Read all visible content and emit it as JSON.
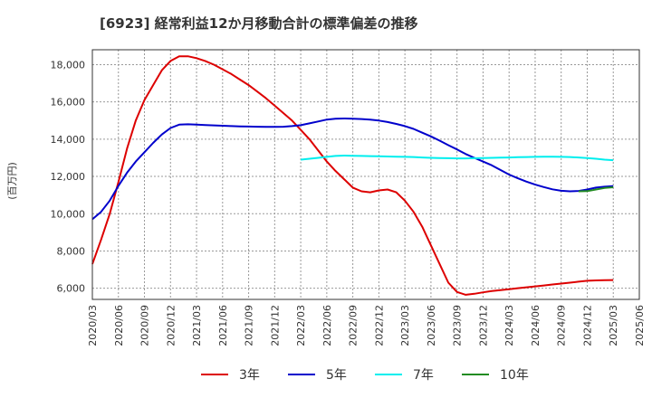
{
  "chart_data": {
    "type": "line",
    "title": "[6923]  経常利益12か月移動合計の標準偏差の推移",
    "ylabel": "(百万円)",
    "xlabel": "",
    "ylim": [
      5400,
      18800
    ],
    "yticks": [
      6000,
      8000,
      10000,
      12000,
      14000,
      16000,
      18000
    ],
    "ytick_labels": [
      "6,000",
      "8,000",
      "10,000",
      "12,000",
      "14,000",
      "16,000",
      "18,000"
    ],
    "xlim": [
      "2020-03",
      "2025-06"
    ],
    "xticks": [
      "2020/03",
      "2020/06",
      "2020/09",
      "2020/12",
      "2021/03",
      "2021/06",
      "2021/09",
      "2021/12",
      "2022/03",
      "2022/06",
      "2022/09",
      "2022/12",
      "2023/03",
      "2023/06",
      "2023/09",
      "2023/12",
      "2024/03",
      "2024/06",
      "2024/09",
      "2024/12",
      "2025/03",
      "2025/06"
    ],
    "grid": true,
    "legend_position": "bottom",
    "series": [
      {
        "name": "3年",
        "color": "#dd0000",
        "x": [
          "2020-03",
          "2020-04",
          "2020-05",
          "2020-06",
          "2020-07",
          "2020-08",
          "2020-09",
          "2020-10",
          "2020-11",
          "2020-12",
          "2021-01",
          "2021-02",
          "2021-03",
          "2021-04",
          "2021-05",
          "2021-06",
          "2021-07",
          "2021-08",
          "2021-09",
          "2021-10",
          "2021-11",
          "2021-12",
          "2022-01",
          "2022-02",
          "2022-03",
          "2022-04",
          "2022-05",
          "2022-06",
          "2022-07",
          "2022-08",
          "2022-09",
          "2022-10",
          "2022-11",
          "2022-12",
          "2023-01",
          "2023-02",
          "2023-03",
          "2023-04",
          "2023-05",
          "2023-06",
          "2023-07",
          "2023-08",
          "2023-09",
          "2023-10",
          "2023-11",
          "2023-12",
          "2024-01",
          "2024-02",
          "2024-03",
          "2024-04",
          "2024-05",
          "2024-06",
          "2024-07",
          "2024-08",
          "2024-09",
          "2024-10",
          "2024-11",
          "2024-12",
          "2025-01",
          "2025-02",
          "2025-03"
        ],
        "values": [
          7300,
          8600,
          10000,
          11700,
          13500,
          15000,
          16100,
          16900,
          17700,
          18200,
          18450,
          18450,
          18350,
          18200,
          18000,
          17750,
          17500,
          17200,
          16900,
          16550,
          16200,
          15800,
          15400,
          15000,
          14500,
          14000,
          13400,
          12800,
          12300,
          11850,
          11400,
          11200,
          11150,
          11250,
          11300,
          11150,
          10700,
          10100,
          9300,
          8300,
          7300,
          6300,
          5800,
          5650,
          5700,
          5780,
          5850,
          5900,
          5950,
          6000,
          6050,
          6100,
          6150,
          6200,
          6250,
          6300,
          6350,
          6400,
          6420,
          6430,
          6440
        ],
        "start": "2020-03"
      },
      {
        "name": "5年",
        "color": "#0000cc",
        "x": [
          "2020-03",
          "2020-04",
          "2020-05",
          "2020-06",
          "2020-07",
          "2020-08",
          "2020-09",
          "2020-10",
          "2020-11",
          "2020-12",
          "2021-01",
          "2021-02",
          "2021-03",
          "2021-04",
          "2021-05",
          "2021-06",
          "2021-07",
          "2021-08",
          "2021-09",
          "2021-10",
          "2021-11",
          "2021-12",
          "2022-01",
          "2022-02",
          "2022-03",
          "2022-04",
          "2022-05",
          "2022-06",
          "2022-07",
          "2022-08",
          "2022-09",
          "2022-10",
          "2022-11",
          "2022-12",
          "2023-01",
          "2023-02",
          "2023-03",
          "2023-04",
          "2023-05",
          "2023-06",
          "2023-07",
          "2023-08",
          "2023-09",
          "2023-10",
          "2023-11",
          "2023-12",
          "2024-01",
          "2024-02",
          "2024-03",
          "2024-04",
          "2024-05",
          "2024-06",
          "2024-07",
          "2024-08",
          "2024-09",
          "2024-10",
          "2024-11",
          "2024-12",
          "2025-01",
          "2025-02",
          "2025-03"
        ],
        "values": [
          9700,
          10100,
          10700,
          11500,
          12200,
          12800,
          13300,
          13800,
          14250,
          14600,
          14780,
          14800,
          14780,
          14760,
          14740,
          14720,
          14700,
          14690,
          14680,
          14670,
          14660,
          14660,
          14670,
          14700,
          14750,
          14850,
          14950,
          15050,
          15100,
          15110,
          15100,
          15080,
          15050,
          15000,
          14920,
          14820,
          14700,
          14550,
          14350,
          14150,
          13920,
          13680,
          13450,
          13200,
          13000,
          12800,
          12600,
          12350,
          12100,
          11900,
          11720,
          11560,
          11430,
          11310,
          11230,
          11200,
          11220,
          11300,
          11400,
          11450,
          11480
        ]
      },
      {
        "name": "7年",
        "color": "#00eeee",
        "x": [
          "2022-03",
          "2022-04",
          "2022-05",
          "2022-06",
          "2022-07",
          "2022-08",
          "2022-09",
          "2022-10",
          "2022-11",
          "2022-12",
          "2023-01",
          "2023-02",
          "2023-03",
          "2023-04",
          "2023-05",
          "2023-06",
          "2023-07",
          "2023-08",
          "2023-09",
          "2023-10",
          "2023-11",
          "2023-12",
          "2024-01",
          "2024-02",
          "2024-03",
          "2024-04",
          "2024-05",
          "2024-06",
          "2024-07",
          "2024-08",
          "2024-09",
          "2024-10",
          "2024-11",
          "2024-12",
          "2025-01",
          "2025-02",
          "2025-03"
        ],
        "values": [
          12900,
          12950,
          13000,
          13050,
          13100,
          13120,
          13110,
          13100,
          13090,
          13080,
          13070,
          13060,
          13050,
          13040,
          13020,
          13000,
          12990,
          12980,
          12970,
          12970,
          12980,
          12990,
          13000,
          13010,
          13020,
          13030,
          13040,
          13050,
          13060,
          13060,
          13050,
          13040,
          13020,
          12990,
          12950,
          12900,
          12870
        ]
      },
      {
        "name": "10年",
        "color": "#228b22",
        "x": [
          "2024-11",
          "2024-12",
          "2025-01",
          "2025-02",
          "2025-03"
        ],
        "values": [
          11200,
          11210,
          11300,
          11380,
          11420
        ]
      }
    ]
  }
}
